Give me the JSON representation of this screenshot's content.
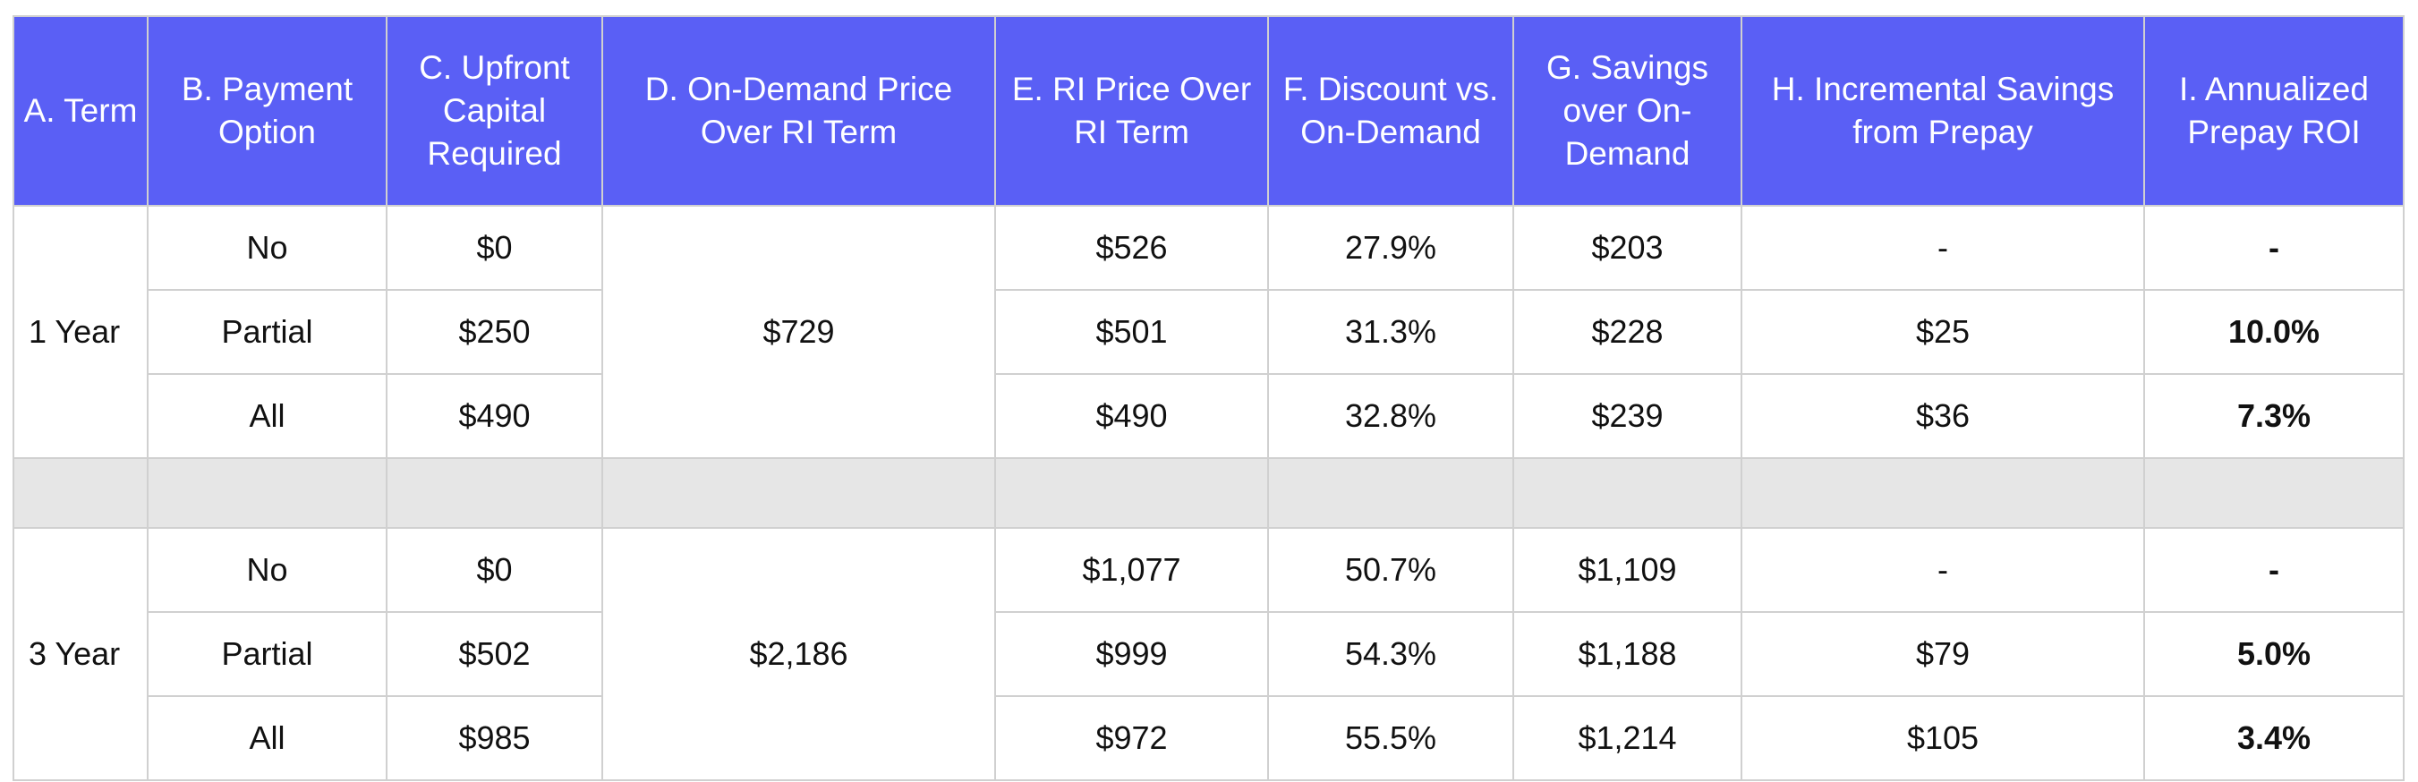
{
  "table": {
    "headers": [
      "A. Term",
      "B. Payment Option",
      "C. Upfront Capital Required",
      "D. On-Demand Price Over RI Term",
      "E. RI Price Over RI Term",
      "F. Discount vs. On-Demand",
      "G. Savings over On-Demand",
      "H. Incremental Savings from Prepay",
      "I. Annualized Prepay ROI"
    ],
    "groups": [
      {
        "term": "1 Year",
        "on_demand": "$729",
        "rows": [
          [
            "No",
            "$0",
            "$526",
            "27.9%",
            "$203",
            "-",
            "-"
          ],
          [
            "Partial",
            "$250",
            "$501",
            "31.3%",
            "$228",
            "$25",
            "10.0%"
          ],
          [
            "All",
            "$490",
            "$490",
            "32.8%",
            "$239",
            "$36",
            "7.3%"
          ]
        ]
      },
      {
        "term": "3 Year",
        "on_demand": "$2,186",
        "rows": [
          [
            "No",
            "$0",
            "$1,077",
            "50.7%",
            "$1,109",
            "-",
            "-"
          ],
          [
            "Partial",
            "$502",
            "$999",
            "54.3%",
            "$1,188",
            "$79",
            "5.0%"
          ],
          [
            "All",
            "$985",
            "$972",
            "55.5%",
            "$1,214",
            "$105",
            "3.4%"
          ]
        ]
      }
    ]
  }
}
